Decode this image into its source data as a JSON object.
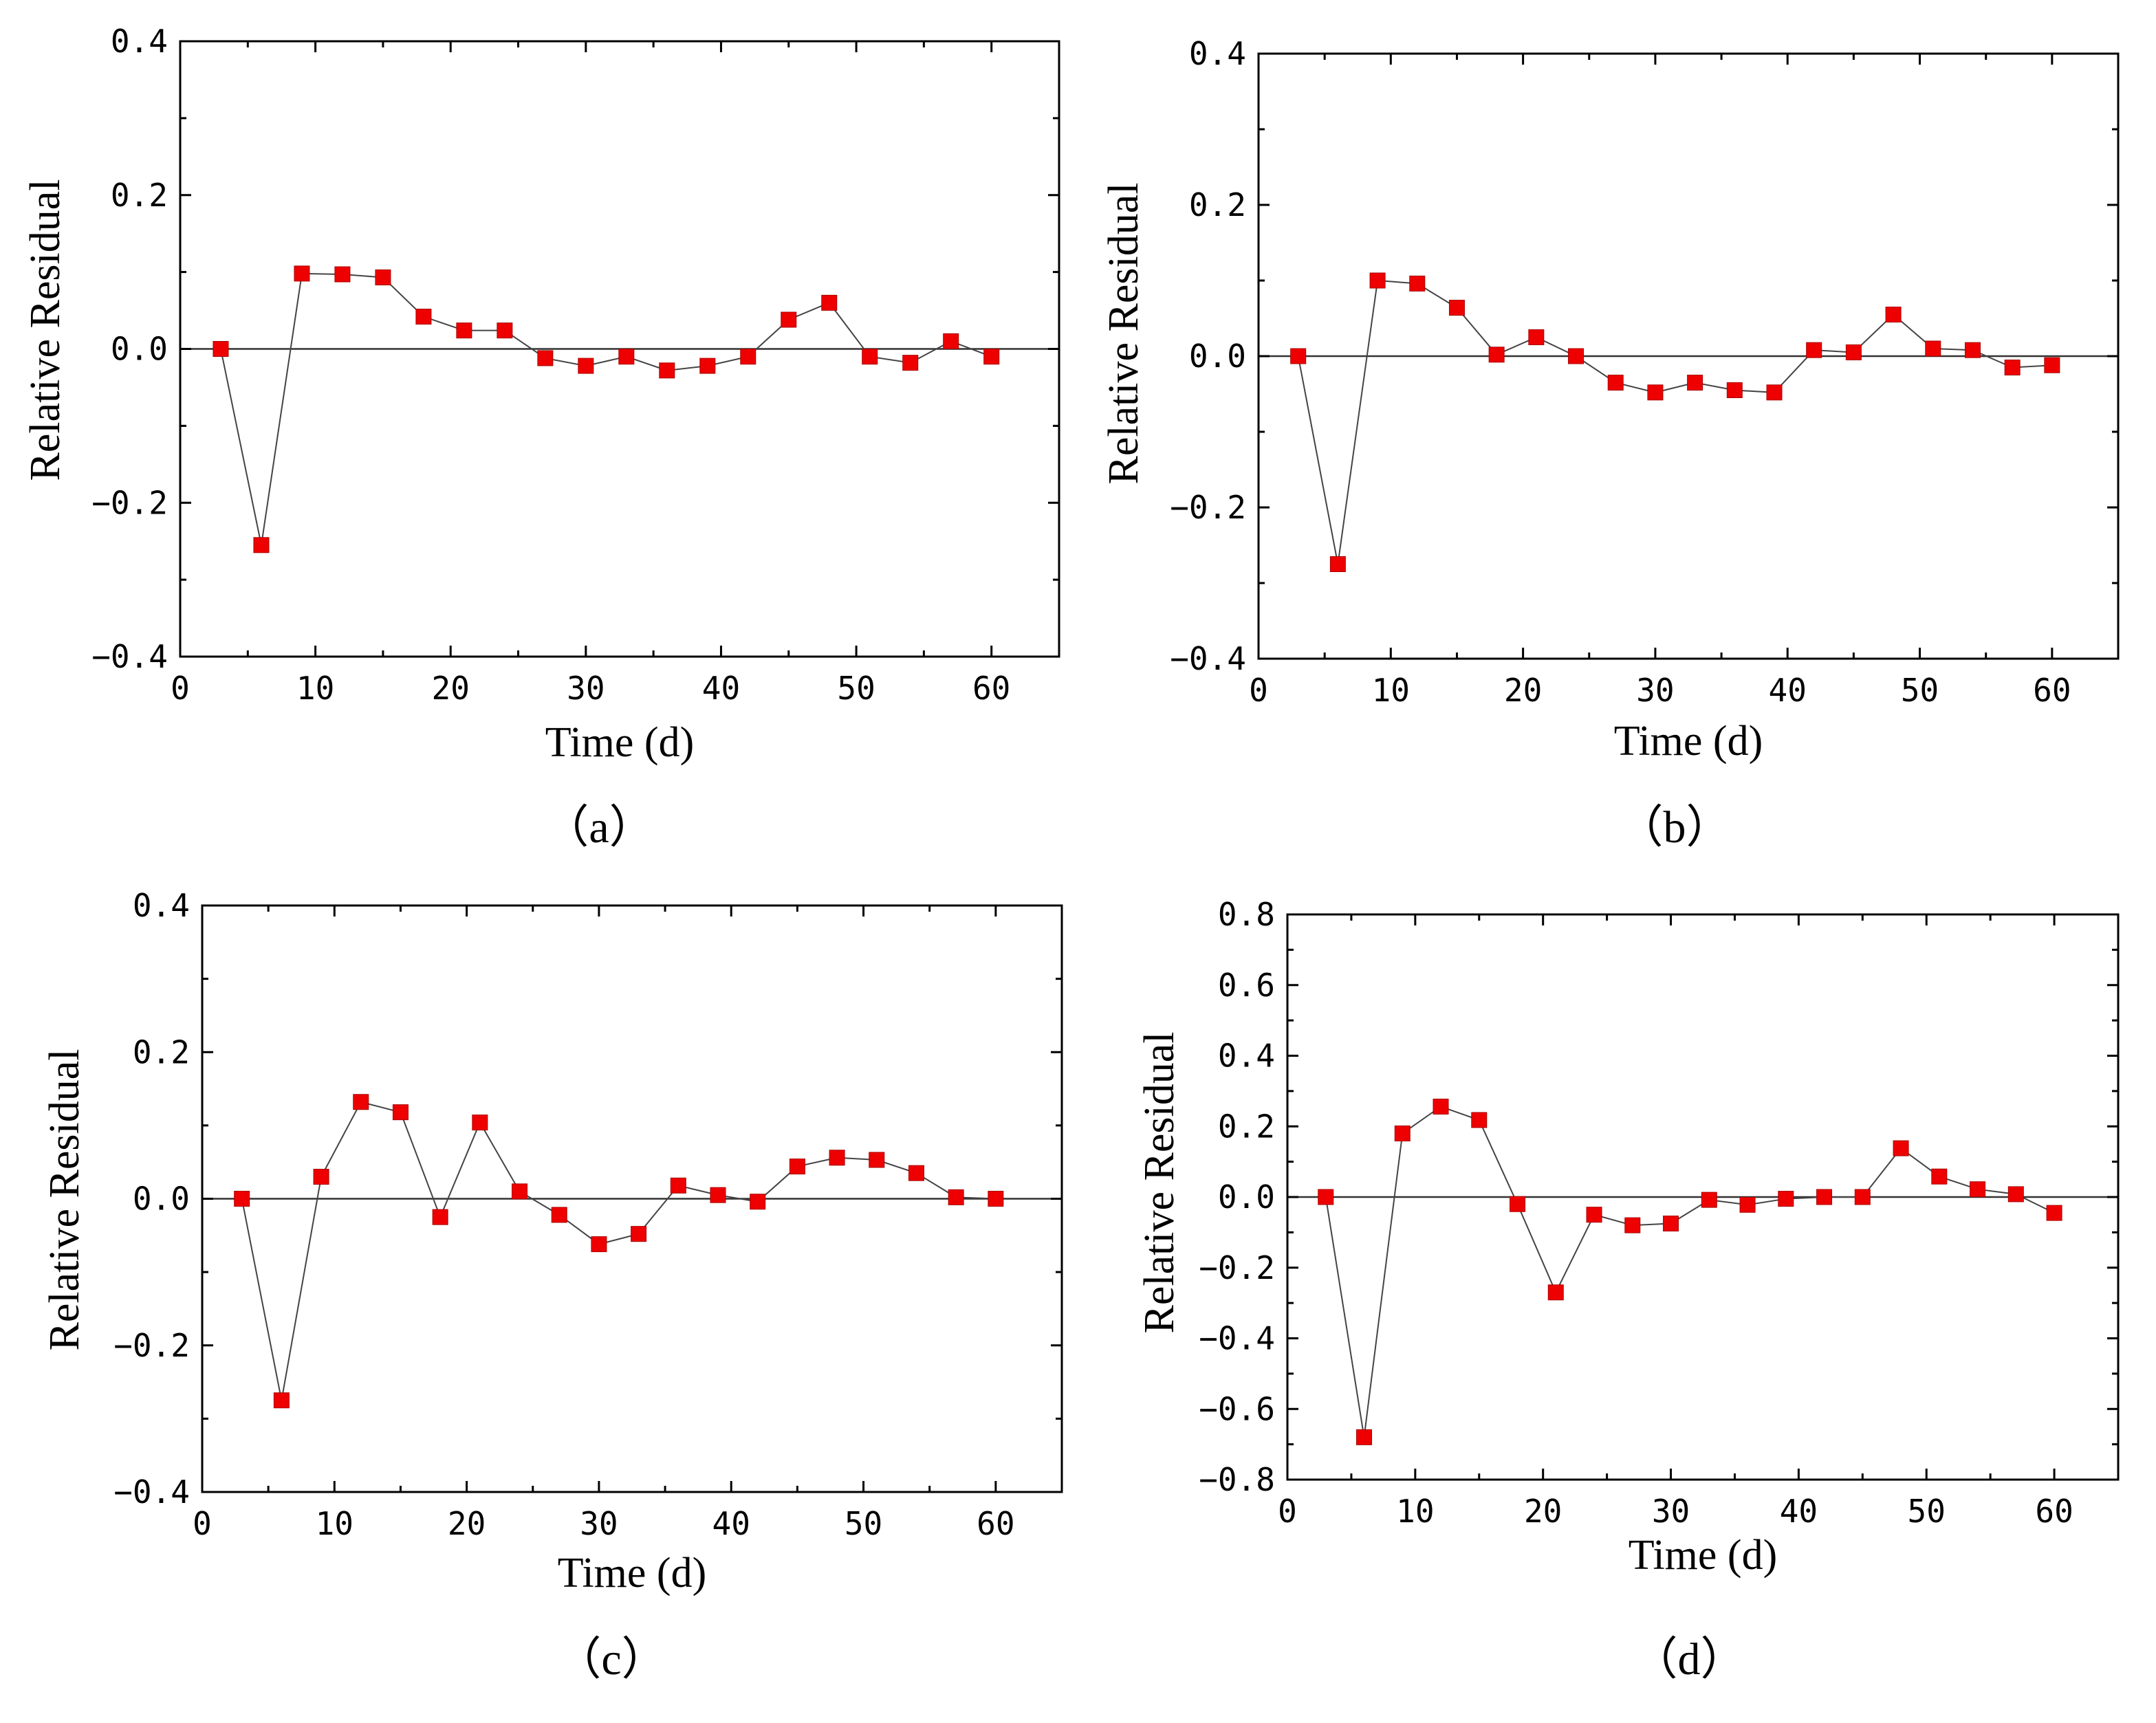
{
  "chart_data": [
    {
      "panel": "a",
      "caption": "（a）",
      "type": "line",
      "xlabel": "Time (d)",
      "ylabel": "Relative Residual",
      "xlim": [
        0,
        65
      ],
      "ylim": [
        -0.4,
        0.4
      ],
      "xticks": [
        0,
        10,
        20,
        30,
        40,
        50,
        60
      ],
      "yticks": [
        -0.4,
        -0.2,
        0.0,
        0.2,
        0.4
      ],
      "ytick_labels": [
        "−0.4",
        "−0.2",
        "0.0",
        "0.2",
        "0.4"
      ],
      "reference_line": 0,
      "x": [
        3,
        6,
        9,
        12,
        15,
        18,
        21,
        24,
        27,
        30,
        33,
        36,
        39,
        42,
        45,
        48,
        51,
        54,
        57,
        60
      ],
      "values": [
        0.0,
        -0.255,
        0.098,
        0.097,
        0.093,
        0.042,
        0.024,
        0.024,
        -0.012,
        -0.022,
        -0.01,
        -0.028,
        -0.022,
        -0.01,
        0.038,
        0.06,
        -0.01,
        -0.018,
        0.01,
        -0.01
      ],
      "marker_color": "#ee0000"
    },
    {
      "panel": "b",
      "caption": "（b）",
      "type": "line",
      "xlabel": "Time (d)",
      "ylabel": "Relative Residual",
      "xlim": [
        0,
        65
      ],
      "ylim": [
        -0.4,
        0.4
      ],
      "xticks": [
        0,
        10,
        20,
        30,
        40,
        50,
        60
      ],
      "yticks": [
        -0.4,
        -0.2,
        0.0,
        0.2,
        0.4
      ],
      "ytick_labels": [
        "−0.4",
        "−0.2",
        "0.0",
        "0.2",
        "0.4"
      ],
      "reference_line": 0,
      "x": [
        3,
        6,
        9,
        12,
        15,
        18,
        21,
        24,
        27,
        30,
        33,
        36,
        39,
        42,
        45,
        48,
        51,
        54,
        57,
        60
      ],
      "values": [
        0.0,
        -0.275,
        0.1,
        0.096,
        0.064,
        0.002,
        0.025,
        0.0,
        -0.035,
        -0.048,
        -0.035,
        -0.045,
        -0.048,
        0.008,
        0.005,
        0.055,
        0.01,
        0.008,
        -0.015,
        -0.012
      ],
      "marker_color": "#ee0000"
    },
    {
      "panel": "c",
      "caption": "（c）",
      "type": "line",
      "xlabel": "Time (d)",
      "ylabel": "Relative Residual",
      "xlim": [
        0,
        65
      ],
      "ylim": [
        -0.4,
        0.4
      ],
      "xticks": [
        0,
        10,
        20,
        30,
        40,
        50,
        60
      ],
      "yticks": [
        -0.4,
        -0.2,
        0.0,
        0.2,
        0.4
      ],
      "ytick_labels": [
        "−0.4",
        "−0.2",
        "0.0",
        "0.2",
        "0.4"
      ],
      "reference_line": 0,
      "x": [
        3,
        6,
        9,
        12,
        15,
        18,
        21,
        24,
        27,
        30,
        33,
        36,
        39,
        42,
        45,
        48,
        51,
        54,
        57,
        60
      ],
      "values": [
        0.0,
        -0.275,
        0.03,
        0.132,
        0.118,
        -0.025,
        0.104,
        0.01,
        -0.022,
        -0.062,
        -0.048,
        0.018,
        0.005,
        -0.004,
        0.044,
        0.056,
        0.053,
        0.035,
        0.002,
        0.0
      ],
      "marker_color": "#ee0000"
    },
    {
      "panel": "d",
      "caption": "（d）",
      "type": "line",
      "xlabel": "Time (d)",
      "ylabel": "Relative Residual",
      "xlim": [
        0,
        65
      ],
      "ylim": [
        -0.8,
        0.8
      ],
      "xticks": [
        0,
        10,
        20,
        30,
        40,
        50,
        60
      ],
      "yticks": [
        -0.8,
        -0.6,
        -0.4,
        -0.2,
        0.0,
        0.2,
        0.4,
        0.6,
        0.8
      ],
      "ytick_labels": [
        "−0.8",
        "−0.6",
        "−0.4",
        "−0.2",
        "0.0",
        "0.2",
        "0.4",
        "0.6",
        "0.8"
      ],
      "reference_line": 0,
      "x": [
        3,
        6,
        9,
        12,
        15,
        18,
        21,
        24,
        27,
        30,
        33,
        36,
        39,
        42,
        45,
        48,
        51,
        54,
        57,
        60
      ],
      "values": [
        0.0,
        -0.68,
        0.18,
        0.256,
        0.218,
        -0.02,
        -0.27,
        -0.05,
        -0.08,
        -0.075,
        -0.008,
        -0.022,
        -0.005,
        0.0,
        0.0,
        0.138,
        0.058,
        0.022,
        0.008,
        -0.045
      ],
      "marker_color": "#ee0000"
    }
  ]
}
